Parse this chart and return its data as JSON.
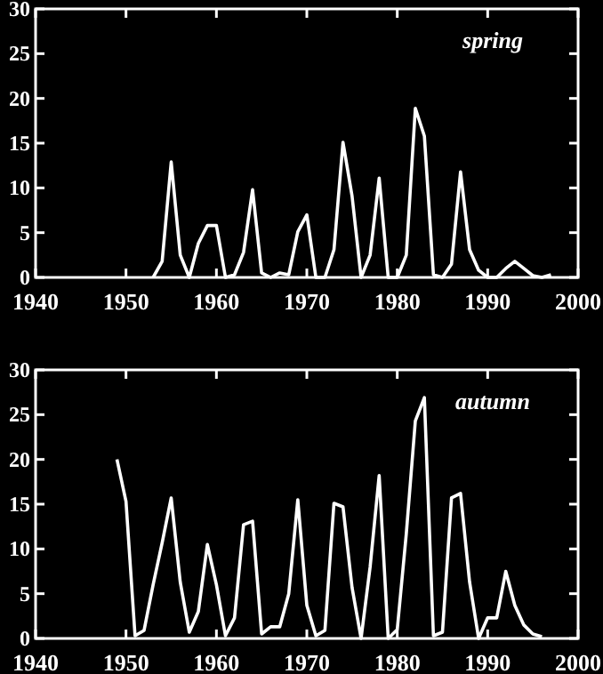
{
  "chart_data": [
    {
      "type": "line",
      "annotations": [
        "spring"
      ],
      "xlim": [
        1940,
        2000
      ],
      "xticks": [
        1940,
        1950,
        1960,
        1970,
        1980,
        1990,
        2000
      ],
      "ylim": [
        0,
        30
      ],
      "yticks": [
        0,
        5,
        10,
        15,
        20,
        25,
        30
      ],
      "series": [
        {
          "color": "#ffffff",
          "x": [
            1953,
            1954,
            1955,
            1956,
            1957,
            1958,
            1959,
            1960,
            1961,
            1962,
            1963,
            1964,
            1965,
            1966,
            1967,
            1968,
            1969,
            1970,
            1971,
            1972,
            1973,
            1974,
            1975,
            1976,
            1977,
            1978,
            1979,
            1980,
            1981,
            1982,
            1983,
            1984,
            1985,
            1986,
            1987,
            1988,
            1989,
            1990,
            1991,
            1992,
            1993,
            1994,
            1995,
            1996,
            1997
          ],
          "values": [
            0,
            1.8,
            12.9,
            2.5,
            0,
            3.8,
            5.8,
            5.8,
            0,
            0.3,
            2.8,
            9.8,
            0.5,
            0,
            0.5,
            0.3,
            5.1,
            7,
            0,
            0,
            3.1,
            15.1,
            9.1,
            0,
            2.5,
            11.1,
            0,
            0,
            2.5,
            18.9,
            15.8,
            0.3,
            0,
            1.5,
            11.8,
            3.1,
            0.8,
            0,
            0,
            1,
            1.8,
            1,
            0.2,
            0,
            0.3
          ]
        }
      ]
    },
    {
      "type": "line",
      "annotations": [
        "autumn"
      ],
      "xlim": [
        1940,
        2000
      ],
      "xticks": [
        1940,
        1950,
        1960,
        1970,
        1980,
        1990,
        2000
      ],
      "ylim": [
        0,
        30
      ],
      "yticks": [
        0,
        5,
        10,
        15,
        20,
        25,
        30
      ],
      "series": [
        {
          "color": "#ffffff",
          "x": [
            1949,
            1950,
            1951,
            1952,
            1953,
            1954,
            1955,
            1956,
            1957,
            1958,
            1959,
            1960,
            1961,
            1962,
            1963,
            1964,
            1965,
            1966,
            1967,
            1968,
            1969,
            1970,
            1971,
            1972,
            1973,
            1974,
            1975,
            1976,
            1977,
            1978,
            1979,
            1980,
            1981,
            1982,
            1983,
            1984,
            1985,
            1986,
            1987,
            1988,
            1989,
            1990,
            1991,
            1992,
            1993,
            1994,
            1995,
            1996
          ],
          "values": [
            20,
            15.3,
            0.3,
            0.9,
            6,
            10.7,
            15.7,
            6.3,
            0.7,
            3,
            10.5,
            6,
            0.3,
            2.3,
            12.7,
            13.1,
            0.5,
            1.3,
            1.3,
            5,
            15.5,
            3.7,
            0.3,
            0.9,
            15.1,
            14.7,
            5.7,
            0,
            8,
            18.2,
            0,
            1,
            11.7,
            24.3,
            26.9,
            0.3,
            0.7,
            15.7,
            16.2,
            6.3,
            0,
            2.3,
            2.3,
            7.5,
            3.7,
            1.5,
            0.5,
            0.2
          ]
        }
      ]
    }
  ]
}
